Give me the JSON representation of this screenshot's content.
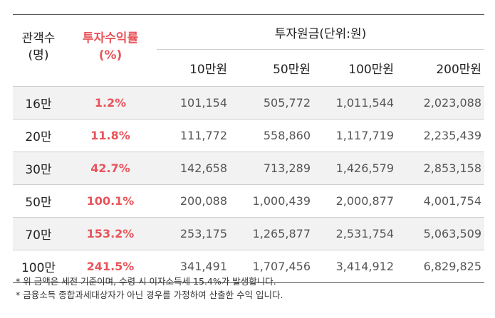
{
  "header": {
    "audience_label_line1": "관객수",
    "audience_label_line2": "(명)",
    "rate_label_line1": "투자수익률",
    "rate_label_line2": "(%)",
    "principal_label": "투자원금(단위:원)",
    "amount_columns": [
      "10만원",
      "50만원",
      "100만원",
      "200만원"
    ]
  },
  "rows": [
    {
      "audience": "16만",
      "rate": "1.2%",
      "amounts": [
        "101,154",
        "505,772",
        "1,011,544",
        "2,023,088"
      ]
    },
    {
      "audience": "20만",
      "rate": "11.8%",
      "amounts": [
        "111,772",
        "558,860",
        "1,117,719",
        "2,235,439"
      ]
    },
    {
      "audience": "30만",
      "rate": "42.7%",
      "amounts": [
        "142,658",
        "713,289",
        "1,426,579",
        "2,853,158"
      ]
    },
    {
      "audience": "50만",
      "rate": "100.1%",
      "amounts": [
        "200,088",
        "1,000,439",
        "2,000,877",
        "4,001,754"
      ]
    },
    {
      "audience": "70만",
      "rate": "153.2%",
      "amounts": [
        "253,175",
        "1,265,877",
        "2,531,754",
        "5,063,509"
      ]
    },
    {
      "audience": "100만",
      "rate": "241.5%",
      "amounts": [
        "341,491",
        "1,707,456",
        "3,414,912",
        "6,829,825"
      ]
    }
  ],
  "notes": [
    "* 위 금액은 세전 기준이며, 수령 시 이자소득세 15.4%가 발생합니다.",
    "* 금융소득 종합과세대상자가 아닌 경우를 가정하여 산출한 수익 입니다."
  ],
  "colors": {
    "accent_rate": "#e8545b",
    "row_shade": "#f2f2f2",
    "rule": "#555555"
  }
}
